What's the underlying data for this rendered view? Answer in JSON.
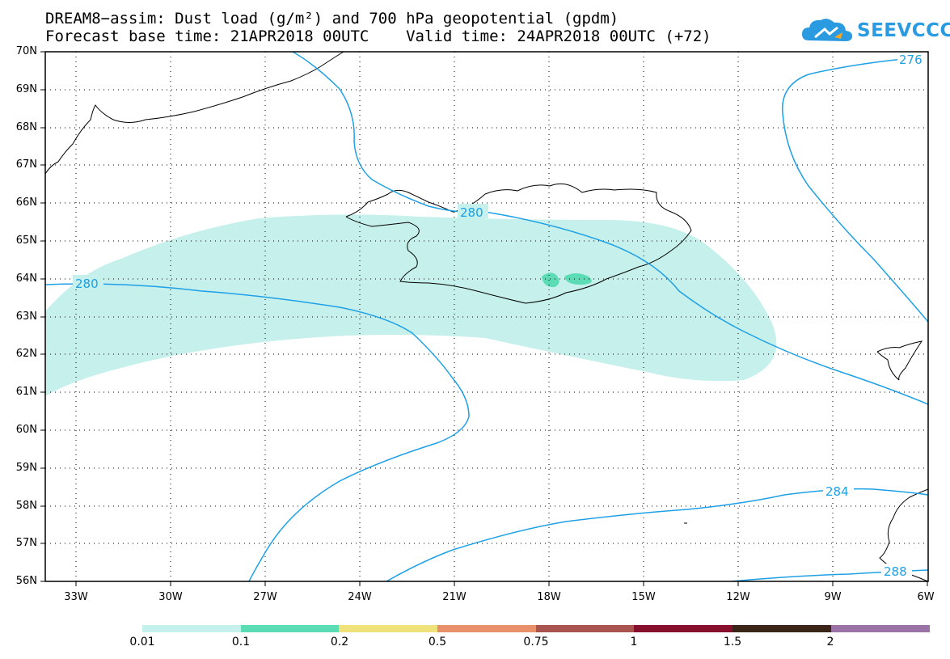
{
  "title": {
    "line1": "DREAM8−assim: Dust load (g/m²) and 700 hPa geopotential (gpdm)",
    "line2": "Forecast base time: 21APR2018 00UTC    Valid time: 24APR2018 00UTC (+72)"
  },
  "logo": {
    "text": "SEEVCCC",
    "icon": "cloud-icon",
    "color": "#2a9be0"
  },
  "map": {
    "lat_labels": [
      "70N",
      "69N",
      "68N",
      "67N",
      "66N",
      "65N",
      "64N",
      "63N",
      "62N",
      "61N",
      "60N",
      "59N",
      "58N",
      "57N",
      "56N"
    ],
    "lon_labels": [
      "33W",
      "30W",
      "27W",
      "24W",
      "21W",
      "18W",
      "15W",
      "12W",
      "9W",
      "6W"
    ],
    "contour_labels": [
      "276",
      "280",
      "280",
      "284",
      "288"
    ],
    "contour_color": "#1ea0e6",
    "dust_color_low": "#c6f0ec",
    "dust_color_mid": "#5bdcb4"
  },
  "legend": {
    "colors": [
      "#c6f0ec",
      "#5bdcb4",
      "#f0e27a",
      "#e8906a",
      "#a9544e",
      "#870f2e",
      "#3a2418",
      "#9a72a6"
    ],
    "labels": [
      "0.01",
      "0.1",
      "0.2",
      "0.5",
      "0.75",
      "1",
      "1.5",
      "2"
    ]
  }
}
